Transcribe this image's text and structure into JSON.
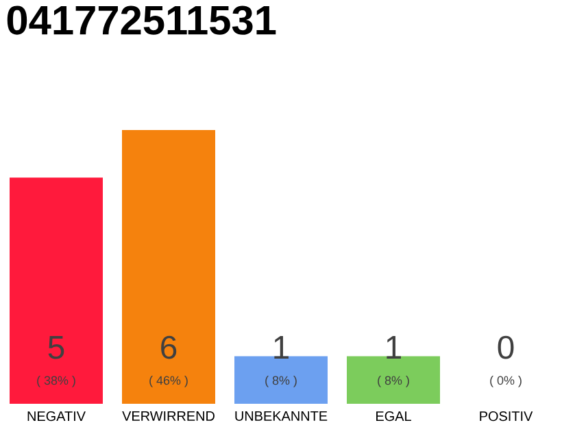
{
  "chart_data": {
    "type": "bar",
    "title": "041772511531",
    "categories": [
      "NEGATIV",
      "VERWIRREND",
      "UNBEKANNTE",
      "EGAL",
      "POSITIV"
    ],
    "values": [
      38,
      46,
      8,
      8,
      0
    ],
    "colors": [
      "#ff1a3c",
      "#f5820d",
      "#6ca0f0",
      "#7ccc5c",
      "#bbbbbb"
    ],
    "value_labels": [
      "( 38% )",
      "( 46% )",
      "( 8% )",
      "( 8% )",
      "( 0% )"
    ],
    "annotations": [
      "5",
      "6",
      "1",
      "1",
      "0"
    ],
    "tick_labels": "x"
  }
}
